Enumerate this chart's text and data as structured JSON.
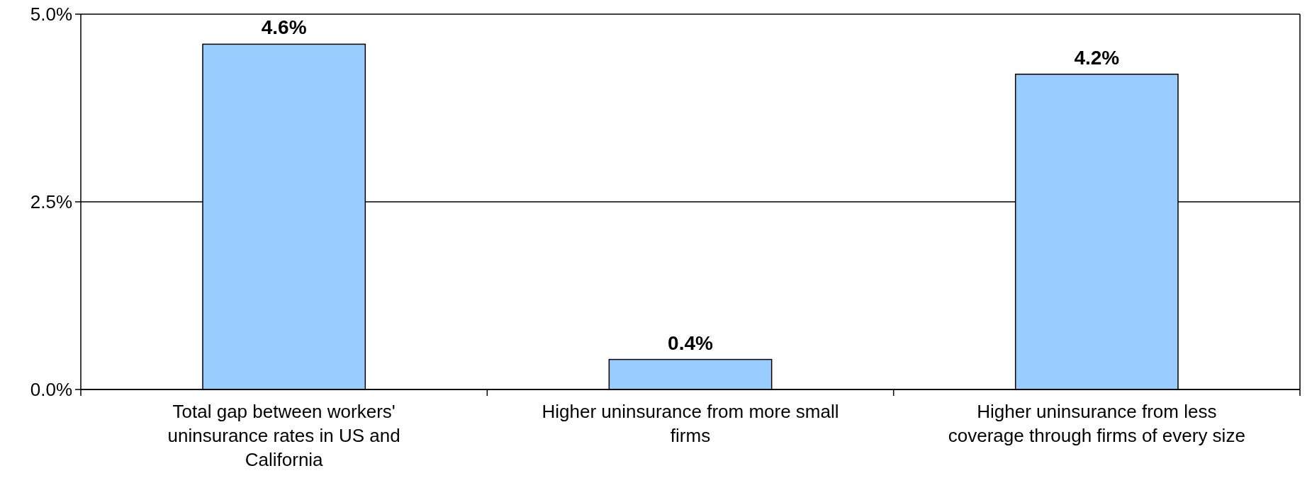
{
  "chart_data": {
    "type": "bar",
    "categories": [
      "Total gap between workers' uninsurance rates in US and California",
      "Higher uninsurance from more small firms",
      "Higher uninsurance from less coverage through firms of every size"
    ],
    "values": [
      4.6,
      0.4,
      4.2
    ],
    "color": "#99ccff",
    "value_labels": [
      "4.6%",
      "0.4%",
      "4.2%"
    ],
    "ylim": [
      0,
      5
    ],
    "yticks": [
      {
        "value": 0,
        "label": "0.0%"
      },
      {
        "value": 2.5,
        "label": "2.5%"
      },
      {
        "value": 5,
        "label": "5.0%"
      }
    ],
    "grid": "y"
  }
}
